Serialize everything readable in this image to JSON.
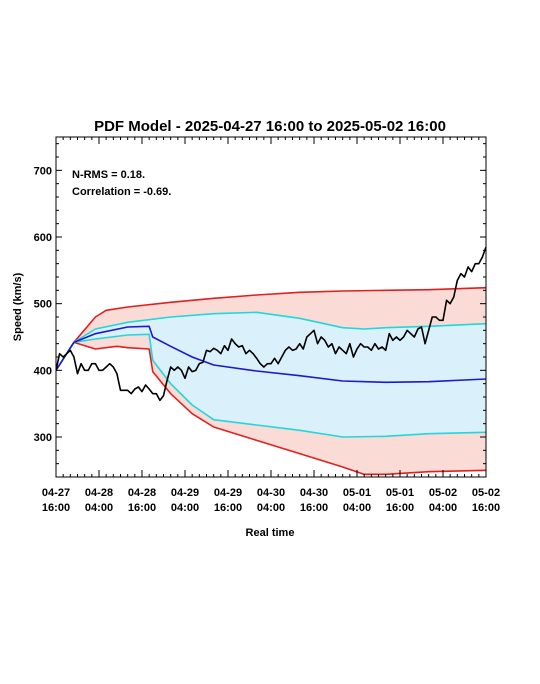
{
  "chart_data": {
    "type": "line",
    "title": "PDF Model - 2025-04-27 16:00 to 2025-05-02 16:00",
    "xlabel": "Real time",
    "ylabel": "Speed (km/s)",
    "xlim": [
      "2025-04-27 16:00",
      "2025-05-02 16:00"
    ],
    "ylim": [
      240,
      750
    ],
    "yticks": [
      300,
      400,
      500,
      600,
      700
    ],
    "xticks": [
      {
        "at": "2025-04-27 16:00",
        "line1": "04-27",
        "line2": "16:00"
      },
      {
        "at": "2025-04-28 04:00",
        "line1": "04-28",
        "line2": "04:00"
      },
      {
        "at": "2025-04-28 16:00",
        "line1": "04-28",
        "line2": "16:00"
      },
      {
        "at": "2025-04-29 04:00",
        "line1": "04-29",
        "line2": "04:00"
      },
      {
        "at": "2025-04-29 16:00",
        "line1": "04-29",
        "line2": "16:00"
      },
      {
        "at": "2025-04-30 04:00",
        "line1": "04-30",
        "line2": "04:00"
      },
      {
        "at": "2025-04-30 16:00",
        "line1": "04-30",
        "line2": "16:00"
      },
      {
        "at": "2025-05-01 04:00",
        "line1": "05-01",
        "line2": "04:00"
      },
      {
        "at": "2025-05-01 16:00",
        "line1": "05-01",
        "line2": "16:00"
      },
      {
        "at": "2025-05-02 04:00",
        "line1": "05-02",
        "line2": "04:00"
      },
      {
        "at": "2025-05-02 16:00",
        "line1": "05-02",
        "line2": "16:00"
      }
    ],
    "annotations": [
      "N-RMS = 0.18.",
      "Correlation = -0.69."
    ],
    "grid": false,
    "legend": "none",
    "colors": {
      "outer_band_fill": "#fadbd6",
      "outer_band_line": "#e02020",
      "inner_band_fill": "#daf0fa",
      "inner_band_line": "#22d6dc",
      "model_line": "#1a1ad0",
      "observed_line": "#000000"
    },
    "series": [
      {
        "key": "outer_upper",
        "x": [
          "2025-04-27 16:00",
          "2025-04-27 21:00",
          "2025-04-28 03:00",
          "2025-04-28 06:00",
          "2025-04-28 12:00",
          "2025-04-29 00:00",
          "2025-04-29 12:00",
          "2025-04-30 00:00",
          "2025-04-30 12:00",
          "2025-05-01 00:00",
          "2025-05-01 12:00",
          "2025-05-02 00:00",
          "2025-05-02 16:00"
        ],
        "values": [
          400,
          442,
          480,
          490,
          495,
          502,
          508,
          513,
          517,
          519,
          520,
          521,
          524
        ]
      },
      {
        "key": "outer_lower",
        "x": [
          "2025-04-27 16:00",
          "2025-04-27 21:00",
          "2025-04-28 03:00",
          "2025-04-28 09:00",
          "2025-04-28 12:00",
          "2025-04-28 18:00",
          "2025-04-28 19:00",
          "2025-04-29 00:00",
          "2025-04-29 06:00",
          "2025-04-29 12:00",
          "2025-04-30 00:00",
          "2025-04-30 12:00",
          "2025-05-01 00:00",
          "2025-05-01 06:00",
          "2025-05-01 12:00",
          "2025-05-02 00:00",
          "2025-05-02 16:00"
        ],
        "values": [
          400,
          442,
          432,
          436,
          434,
          432,
          398,
          365,
          335,
          315,
          295,
          275,
          255,
          244,
          244,
          248,
          250
        ]
      },
      {
        "key": "inner_upper",
        "x": [
          "2025-04-27 16:00",
          "2025-04-27 21:00",
          "2025-04-28 03:00",
          "2025-04-28 12:00",
          "2025-04-29 00:00",
          "2025-04-29 12:00",
          "2025-04-30 00:00",
          "2025-04-30 12:00",
          "2025-05-01 00:00",
          "2025-05-01 06:00",
          "2025-05-01 12:00",
          "2025-05-02 00:00",
          "2025-05-02 16:00"
        ],
        "values": [
          400,
          442,
          462,
          472,
          480,
          485,
          487,
          478,
          464,
          462,
          464,
          466,
          470
        ]
      },
      {
        "key": "inner_lower",
        "x": [
          "2025-04-27 16:00",
          "2025-04-27 21:00",
          "2025-04-28 03:00",
          "2025-04-28 12:00",
          "2025-04-28 18:00",
          "2025-04-28 19:00",
          "2025-04-29 00:00",
          "2025-04-29 06:00",
          "2025-04-29 12:00",
          "2025-04-30 00:00",
          "2025-04-30 12:00",
          "2025-05-01 00:00",
          "2025-05-01 12:00",
          "2025-05-02 00:00",
          "2025-05-02 16:00"
        ],
        "values": [
          400,
          442,
          447,
          453,
          454,
          415,
          380,
          348,
          326,
          318,
          310,
          300,
          301,
          305,
          307
        ]
      },
      {
        "key": "model",
        "x": [
          "2025-04-27 16:00",
          "2025-04-27 21:00",
          "2025-04-28 03:00",
          "2025-04-28 12:00",
          "2025-04-28 18:00",
          "2025-04-28 19:00",
          "2025-04-29 00:00",
          "2025-04-29 06:00",
          "2025-04-29 12:00",
          "2025-04-30 00:00",
          "2025-04-30 12:00",
          "2025-05-01 00:00",
          "2025-05-01 12:00",
          "2025-05-02 00:00",
          "2025-05-02 16:00"
        ],
        "values": [
          400,
          442,
          455,
          465,
          466,
          450,
          436,
          420,
          408,
          399,
          392,
          384,
          382,
          383,
          387
        ]
      },
      {
        "key": "observed",
        "x": [
          "2025-04-27 16:00",
          "2025-04-27 17:00",
          "2025-04-27 18:00",
          "2025-04-27 19:00",
          "2025-04-27 20:00",
          "2025-04-27 21:00",
          "2025-04-27 22:00",
          "2025-04-27 23:00",
          "2025-04-28 00:00",
          "2025-04-28 01:00",
          "2025-04-28 02:00",
          "2025-04-28 03:00",
          "2025-04-28 04:00",
          "2025-04-28 05:00",
          "2025-04-28 06:00",
          "2025-04-28 07:00",
          "2025-04-28 08:00",
          "2025-04-28 09:00",
          "2025-04-28 10:00",
          "2025-04-28 11:00",
          "2025-04-28 12:00",
          "2025-04-28 13:00",
          "2025-04-28 14:00",
          "2025-04-28 15:00",
          "2025-04-28 16:00",
          "2025-04-28 17:00",
          "2025-04-28 18:00",
          "2025-04-28 19:00",
          "2025-04-28 20:00",
          "2025-04-28 21:00",
          "2025-04-28 22:00",
          "2025-04-28 23:00",
          "2025-04-29 00:00",
          "2025-04-29 01:00",
          "2025-04-29 02:00",
          "2025-04-29 03:00",
          "2025-04-29 04:00",
          "2025-04-29 05:00",
          "2025-04-29 06:00",
          "2025-04-29 07:00",
          "2025-04-29 08:00",
          "2025-04-29 09:00",
          "2025-04-29 10:00",
          "2025-04-29 11:00",
          "2025-04-29 12:00",
          "2025-04-29 13:00",
          "2025-04-29 14:00",
          "2025-04-29 15:00",
          "2025-04-29 16:00",
          "2025-04-29 17:00",
          "2025-04-29 18:00",
          "2025-04-29 19:00",
          "2025-04-29 20:00",
          "2025-04-29 21:00",
          "2025-04-29 22:00",
          "2025-04-29 23:00",
          "2025-04-30 00:00",
          "2025-04-30 01:00",
          "2025-04-30 02:00",
          "2025-04-30 03:00",
          "2025-04-30 04:00",
          "2025-04-30 05:00",
          "2025-04-30 06:00",
          "2025-04-30 07:00",
          "2025-04-30 08:00",
          "2025-04-30 09:00",
          "2025-04-30 10:00",
          "2025-04-30 11:00",
          "2025-04-30 12:00",
          "2025-04-30 13:00",
          "2025-04-30 14:00",
          "2025-04-30 15:00",
          "2025-04-30 16:00",
          "2025-04-30 17:00",
          "2025-04-30 18:00",
          "2025-04-30 19:00",
          "2025-04-30 20:00",
          "2025-04-30 21:00",
          "2025-04-30 22:00",
          "2025-04-30 23:00",
          "2025-05-01 00:00",
          "2025-05-01 01:00",
          "2025-05-01 02:00",
          "2025-05-01 03:00",
          "2025-05-01 04:00",
          "2025-05-01 05:00",
          "2025-05-01 06:00",
          "2025-05-01 07:00",
          "2025-05-01 08:00",
          "2025-05-01 09:00",
          "2025-05-01 10:00",
          "2025-05-01 11:00",
          "2025-05-01 12:00",
          "2025-05-01 13:00",
          "2025-05-01 14:00",
          "2025-05-01 15:00",
          "2025-05-01 16:00",
          "2025-05-01 17:00",
          "2025-05-01 18:00",
          "2025-05-01 19:00",
          "2025-05-01 20:00",
          "2025-05-01 21:00",
          "2025-05-01 22:00",
          "2025-05-01 23:00",
          "2025-05-02 00:00",
          "2025-05-02 01:00",
          "2025-05-02 02:00",
          "2025-05-02 03:00",
          "2025-05-02 04:00",
          "2025-05-02 05:00",
          "2025-05-02 06:00",
          "2025-05-02 07:00",
          "2025-05-02 08:00",
          "2025-05-02 09:00",
          "2025-05-02 10:00",
          "2025-05-02 11:00",
          "2025-05-02 12:00",
          "2025-05-02 13:00",
          "2025-05-02 14:00",
          "2025-05-02 15:00",
          "2025-05-02 16:00"
        ],
        "values": [
          400,
          425,
          420,
          425,
          430,
          420,
          395,
          410,
          400,
          400,
          410,
          410,
          400,
          400,
          405,
          410,
          405,
          395,
          370,
          370,
          370,
          365,
          372,
          375,
          368,
          378,
          372,
          365,
          365,
          355,
          362,
          385,
          405,
          400,
          405,
          400,
          388,
          405,
          398,
          400,
          410,
          412,
          430,
          428,
          433,
          430,
          425,
          437,
          430,
          447,
          440,
          435,
          437,
          425,
          430,
          425,
          418,
          410,
          405,
          410,
          410,
          418,
          410,
          420,
          430,
          435,
          430,
          432,
          440,
          432,
          450,
          455,
          460,
          440,
          450,
          445,
          435,
          440,
          425,
          435,
          430,
          425,
          440,
          420,
          432,
          440,
          435,
          435,
          430,
          440,
          432,
          435,
          430,
          455,
          445,
          450,
          445,
          450,
          460,
          455,
          450,
          462,
          465,
          440,
          460,
          480,
          480,
          475,
          475,
          505,
          500,
          510,
          535,
          545,
          540,
          555,
          548,
          560,
          560,
          570,
          585
        ]
      }
    ]
  }
}
